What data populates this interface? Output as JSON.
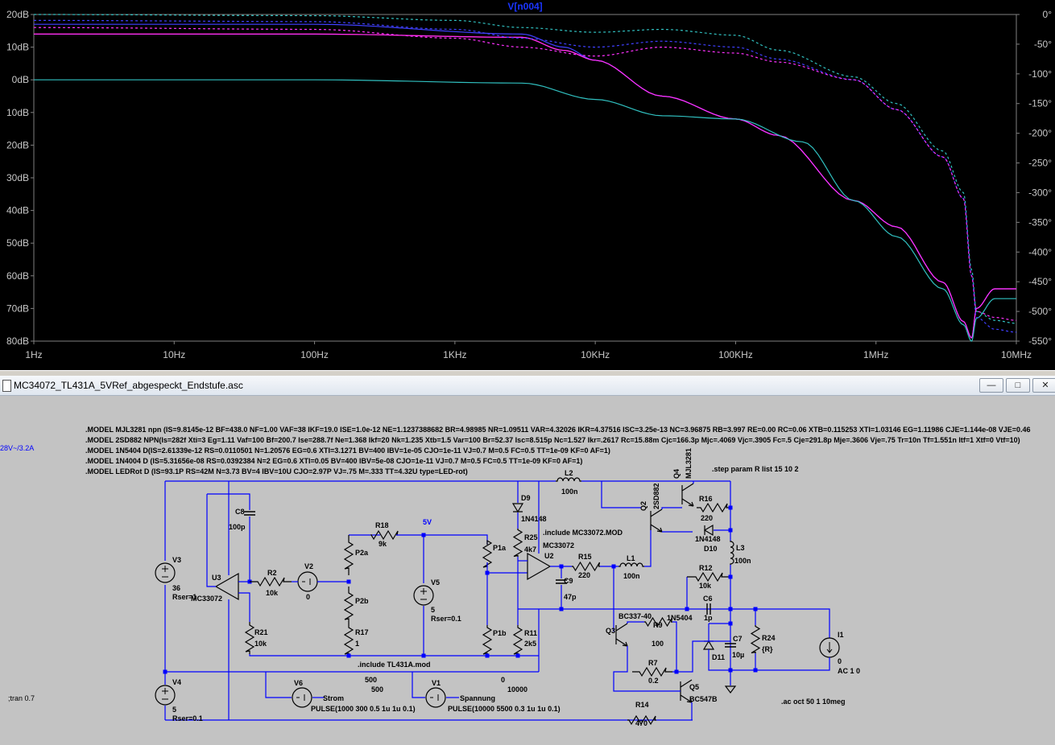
{
  "plot": {
    "trace_label": "V[n004]",
    "left_axis_labels": [
      "20dB",
      "10dB",
      "0dB",
      "10dB",
      "20dB",
      "30dB",
      "40dB",
      "50dB",
      "60dB",
      "70dB",
      "80dB"
    ],
    "right_axis_labels": [
      "0°",
      "-50°",
      "-100°",
      "-150°",
      "-200°",
      "-250°",
      "-300°",
      "-350°",
      "-400°",
      "-450°",
      "-500°",
      "-550°"
    ],
    "x_axis_labels": [
      "1Hz",
      "10Hz",
      "100Hz",
      "1KHz",
      "10KHz",
      "100KHz",
      "1MHz",
      "10MHz"
    ],
    "colors": {
      "background": "#000000",
      "grid": "#303030",
      "axis_text": "#c8c8c8",
      "trace_label": "#1a35ff",
      "red": "#ff1a40",
      "blue": "#4040ff",
      "cyan": "#30c0c0",
      "magenta": "#ff30ff"
    }
  },
  "chart_data": {
    "type": "line",
    "title": "V[n004]",
    "x_scale": "log",
    "xlim": [
      1,
      10000000
    ],
    "ylim_left_db": [
      -80,
      20
    ],
    "ylim_right_deg": [
      -550,
      0
    ],
    "grid": false,
    "series": [
      {
        "color": "#ff1a40",
        "style": "solid",
        "axis": "left",
        "x": [
          1,
          100,
          3000,
          6000,
          10000,
          30000,
          100000,
          200000,
          700000,
          1400000,
          3000000,
          4200000,
          4800000,
          5200000,
          7000000,
          10000000
        ],
        "values": [
          14,
          14,
          13,
          9,
          6,
          -5,
          -12,
          -17,
          -37,
          -45,
          -62,
          -74,
          -79,
          -70,
          -64,
          -64
        ]
      },
      {
        "color": "#4040ff",
        "style": "solid",
        "axis": "left",
        "x": [
          1,
          100,
          3000,
          6000,
          10000,
          30000,
          100000,
          200000,
          700000,
          1400000,
          3000000,
          4200000,
          4800000,
          5200000,
          7000000,
          10000000
        ],
        "values": [
          17,
          17,
          14,
          10,
          6,
          -5,
          -12,
          -17,
          -37,
          -45,
          -62,
          -74,
          -79,
          -70,
          -64,
          -64
        ]
      },
      {
        "color": "#ff30ff",
        "style": "solid",
        "axis": "left",
        "x": [
          1,
          100,
          3000,
          6000,
          10000,
          30000,
          100000,
          200000,
          700000,
          1400000,
          3000000,
          4200000,
          4800000,
          5200000,
          7000000,
          10000000
        ],
        "values": [
          14,
          14,
          13,
          9,
          6,
          -5,
          -12,
          -17,
          -37,
          -45,
          -62,
          -74,
          -79,
          -70,
          -64,
          -64
        ]
      },
      {
        "color": "#30c0c0",
        "style": "solid",
        "axis": "left",
        "x": [
          1,
          100,
          3000,
          10000,
          30000,
          100000,
          300000,
          700000,
          1400000,
          3000000,
          4200000,
          4800000,
          5200000,
          7000000,
          10000000
        ],
        "values": [
          0,
          0,
          -1,
          -6,
          -11,
          -12,
          -19,
          -37,
          -48,
          -64,
          -75,
          -80,
          -73,
          -67,
          -67
        ]
      },
      {
        "color": "#30c0c0",
        "style": "dashed",
        "axis": "right",
        "x": [
          1,
          100,
          1000,
          3000,
          10000,
          30000,
          100000,
          200000,
          700000,
          1400000,
          3000000,
          4200000,
          4800000,
          5200000,
          7000000,
          10000000
        ],
        "values": [
          0,
          -2,
          -10,
          -22,
          -30,
          -25,
          -35,
          -60,
          -105,
          -150,
          -230,
          -300,
          -430,
          -500,
          -515,
          -520
        ]
      },
      {
        "color": "#4040ff",
        "style": "dashed",
        "axis": "right",
        "x": [
          1,
          100,
          1000,
          3000,
          10000,
          30000,
          100000,
          200000,
          700000,
          1400000,
          3000000,
          4200000,
          4800000,
          5200000,
          7000000,
          10000000
        ],
        "values": [
          -10,
          -12,
          -25,
          -40,
          -55,
          -45,
          -55,
          -75,
          -110,
          -160,
          -240,
          -310,
          -440,
          -510,
          -530,
          -535
        ]
      },
      {
        "color": "#ff30ff",
        "style": "dashed",
        "axis": "right",
        "x": [
          1,
          100,
          1000,
          3000,
          10000,
          30000,
          100000,
          200000,
          700000,
          1400000,
          3000000,
          4200000,
          4800000,
          5200000,
          7000000,
          10000000
        ],
        "values": [
          -22,
          -25,
          -40,
          -55,
          -70,
          -55,
          -65,
          -80,
          -110,
          -160,
          -240,
          -310,
          -440,
          -500,
          -510,
          -515
        ]
      }
    ]
  },
  "window": {
    "title": "MC34072_TL431A_5VRef_abgespeckt_Endstufe.asc",
    "min_glyph": "—",
    "max_glyph": "□",
    "close_glyph": "✕"
  },
  "schematic": {
    "models": [
      ".MODEL MJL3281 npn (IS=9.8145e-12 BF=438.0 NF=1.00 VAF=38 IKF=19.0 ISE=1.0e-12 NE=1.1237388682 BR=4.98985 NR=1.09511 VAR=4.32026 IKR=4.37516 ISC=3.25e-13 NC=3.96875 RB=3.997 RE=0.00 RC=0.06 XTB=0.115253 XTI=1.03146 EG=1.11986 CJE=1.144e-08 VJE=0.46",
      ".MODEL 2SD882 NPN(Is=282f Xti=3 Eg=1.11 Vaf=100 Bf=200.7 Ise=288.7f Ne=1.368 Ikf=20 Nk=1.235 Xtb=1.5 Var=100 Br=52.37 Isc=8.515p Nc=1.527 Ikr=.2617 Rc=15.88m Cjc=166.3p Mjc=.4069 Vjc=.3905 Fc=.5 Cje=291.8p Mje=.3606 Vje=.75 Tr=10n Tf=1.551n Itf=1 Xtf=0 Vtf=10)",
      ".MODEL 1N5404 D(IS=2.61339e-12 RS=0.0110501 N=1.20576 EG=0.6 XTI=3.1271 BV=400 IBV=1e-05 CJO=1e-11 VJ=0.7 M=0.5 FC=0.5 TT=1e-09 KF=0 AF=1)",
      ".MODEL 1N4004 D (IS=5.31656e-08 RS=0.0392384 N=2 EG=0.6 XTI=0.05 BV=400 IBV=5e-08 CJO=1e-11 VJ=0.7 M=0.5 FC=0.5 TT=1e-09 KF=0 AF=1)",
      ".MODEL LEDRot D (IS=93.1P RS=42M N=3.73 BV=4 IBV=10U CJO=2.97P VJ=.75 M=.333 TT=4.32U type=LED-rot)"
    ],
    "labels": {
      "left_note": "28V~/3.2A",
      "step": ".step param R list 15 10 2",
      "tran": ";tran 0.7",
      "ac": ".ac oct 50 1 10meg",
      "inc_mc33072": ".include MC33072.MOD",
      "inc_tl431": ".include TL431A.mod",
      "net_5v": "5V",
      "V3": "V3",
      "V3_val": "36",
      "V3_rser": "Rser=1",
      "V4": "V4",
      "V4_val": "5",
      "V4_rser": "Rser=0.1",
      "V5": "V5",
      "V5_val": "5",
      "V5_rser": "Rser=0.1",
      "V2": "V2",
      "V2_val": "0",
      "V6": "V6",
      "V6_name": "Strom",
      "V6_pulse": "PULSE(1000 300 0.5 1u 1u 0.1)",
      "V6_a": "500",
      "V6_b": "500",
      "V1": "V1",
      "V1_name": "Spannung",
      "V1_pulse": "PULSE(10000 5500 0.3 1u 1u 0.1)",
      "V1_a": "0",
      "V1_b": "10000",
      "U3": "U3",
      "U3_model": "MC33072",
      "U2": "U2",
      "U2_model": "MC33072",
      "C8": "C8",
      "C8_val": "100p",
      "R2": "R2",
      "R2_val": "10k",
      "R21": "R21",
      "R21_val": "10k",
      "R18": "R18",
      "R18_val": "9k",
      "P2a": "P2a",
      "P2b": "P2b",
      "R17": "R17",
      "R17_val": "1",
      "P1a": "P1a",
      "P1b": "P1b",
      "D9": "D9",
      "D9_model": "1N4148",
      "R25": "R25",
      "R25_val": "4k7",
      "R11": "R11",
      "R11_val": "2k5",
      "C9": "C9",
      "C9_val": "47p",
      "R15": "R15",
      "R15_val": "220",
      "L1": "L1",
      "L1_val": "100n",
      "L2": "L2",
      "L2_val": "100n",
      "L3": "L3",
      "L3_val": "100n",
      "Q2": "Q2",
      "Q2_model": "2SD882",
      "Q4": "Q4",
      "Q4_model": "MJL3281",
      "R16": "R16",
      "R16_val": "220",
      "D10_model": "1N4148",
      "D10": "D10",
      "R12": "R12",
      "R12_val": "10k",
      "C6": "C6",
      "C6_val": "1p",
      "D_1N5404": "1N5404",
      "C7": "C7",
      "C7_val": "10µ",
      "D11": "D11",
      "R24": "R24",
      "R24_val": "{R}",
      "I1": "I1",
      "I1_val": "0",
      "I1_ac": "AC 1 0",
      "Q3": "Q3",
      "Q3_model": "BC337-40",
      "R9": "R9",
      "R9_val": "100",
      "R7": "R7",
      "R7_val": "0.2",
      "Q5": "Q5",
      "Q5_model": "BC547B",
      "R14": "R14",
      "R14_val": "470"
    },
    "colors": {
      "wire": "#0000ff",
      "component": "#000000",
      "text": "#000000",
      "net_label": "#0000ff",
      "background": "#c3c3c3"
    }
  }
}
